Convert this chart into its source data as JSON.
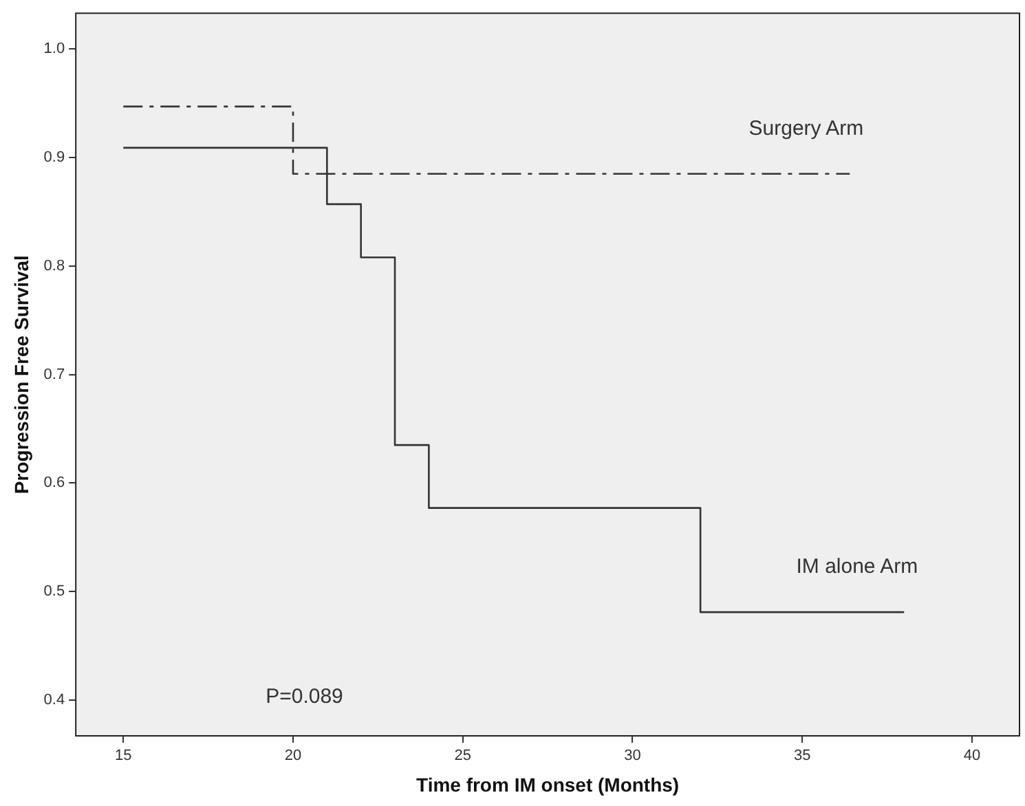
{
  "chart_data": {
    "type": "step",
    "xlabel": "Time from IM onset (Months)",
    "ylabel": "Progression Free Survival",
    "xlim": [
      13.6,
      41.4
    ],
    "xticks": [
      15,
      20,
      25,
      30,
      35,
      40
    ],
    "ylim": [
      0.367,
      1.033
    ],
    "yticks": [
      0.4,
      0.5,
      0.6,
      0.7,
      0.8,
      0.9,
      {
        "value": 1,
        "label": "1.0"
      }
    ],
    "grid": false,
    "legend": false,
    "marker": "none",
    "series": [
      {
        "name": "Surgery Arm",
        "color": "#333333",
        "line_style": "dashed",
        "x": [
          15,
          20,
          36.4
        ],
        "values": [
          0.947,
          0.885,
          0.885
        ]
      },
      {
        "name": "IM alone Arm",
        "color": "#333333",
        "line_style": "solid",
        "x": [
          15,
          21,
          22,
          23,
          24,
          32,
          38
        ],
        "values": [
          0.909,
          0.857,
          0.808,
          0.635,
          0.577,
          0.481,
          0.481
        ]
      }
    ],
    "annotations": [
      "P=0.089"
    ]
  }
}
